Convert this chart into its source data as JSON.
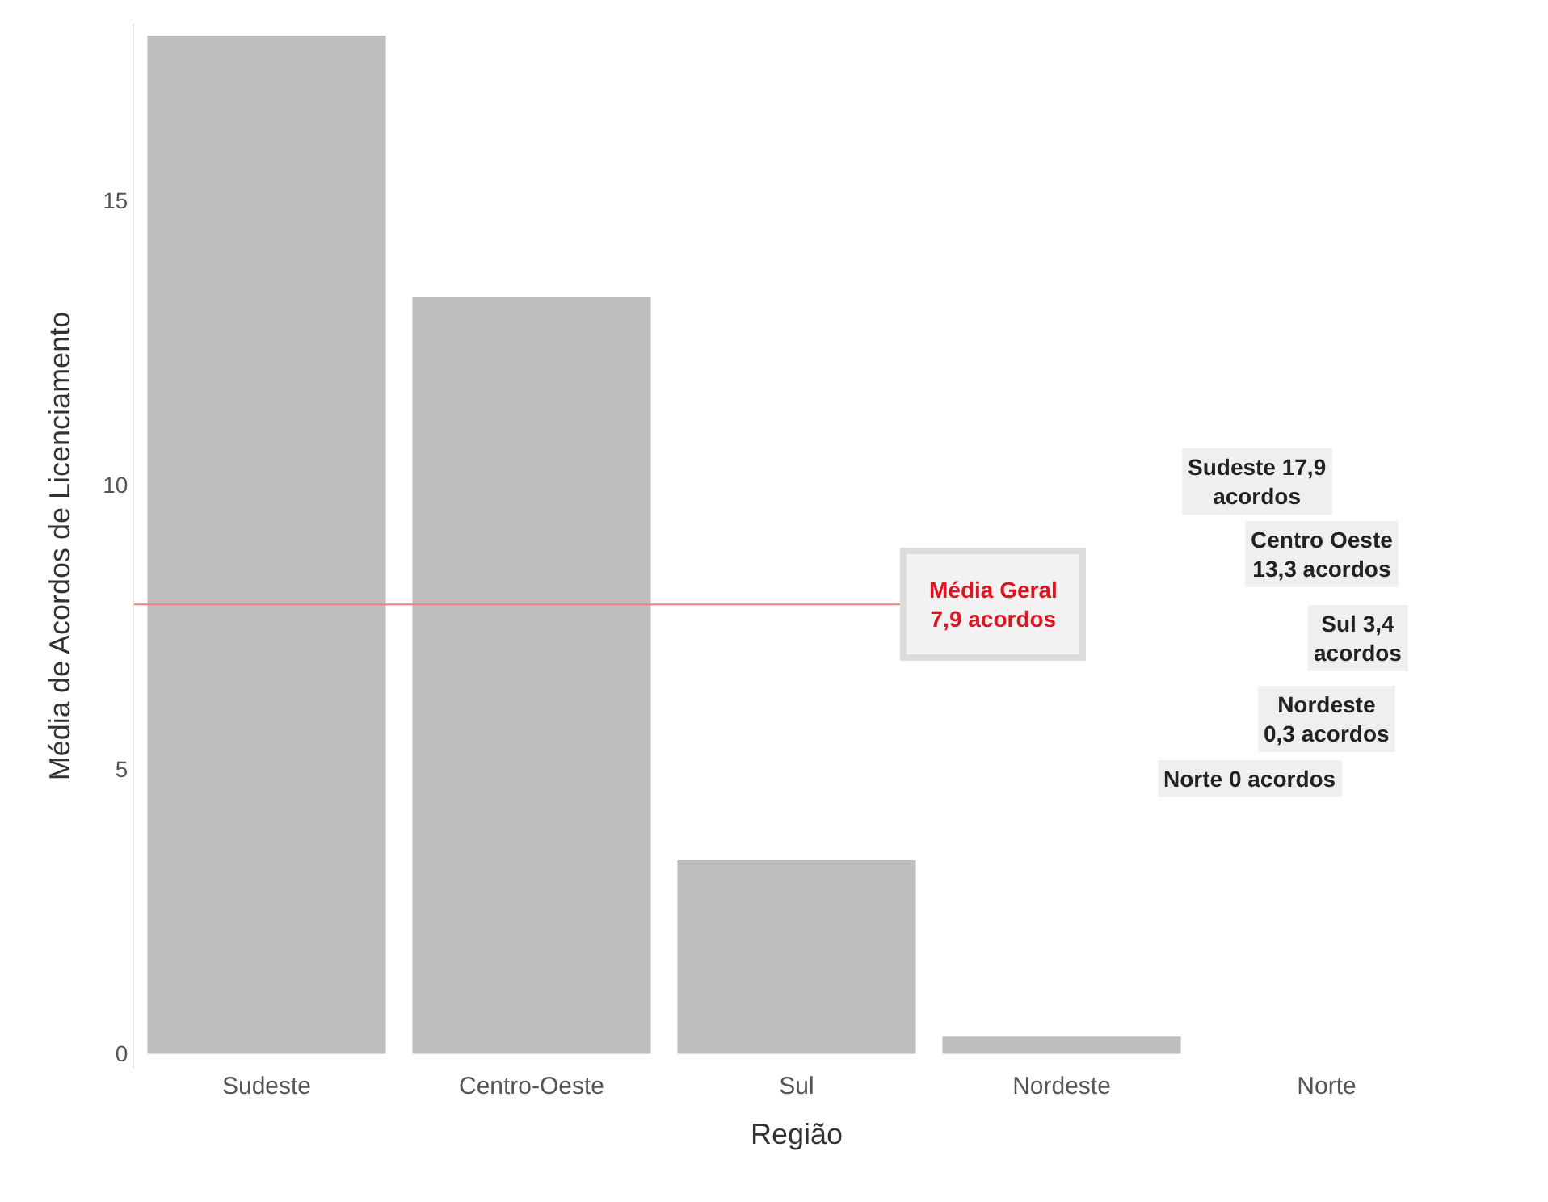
{
  "chart_data": {
    "type": "bar",
    "xlabel": "Região",
    "ylabel": "Média de Acordos de Licenciamento",
    "categories": [
      "Sudeste",
      "Centro-Oeste",
      "Sul",
      "Nordeste",
      "Norte"
    ],
    "values": [
      17.9,
      13.3,
      3.4,
      0.3,
      0
    ],
    "color": "#bebebe",
    "ylim": [
      -0.25,
      18.1
    ],
    "yticks": [
      0,
      5,
      10,
      15
    ],
    "legend": false,
    "ref_lines": [
      {
        "axis": "y",
        "value": 7.9,
        "label": "Média Geral\n7,9 acordos",
        "color": "#f08080"
      }
    ],
    "annotations": [
      "Sudeste 17,9\nacordos",
      "Centro Oeste\n13,3 acordos",
      "Sul 3,4\nacordos",
      "Nordeste\n0,3 acordos",
      "Norte 0 acordos"
    ]
  }
}
